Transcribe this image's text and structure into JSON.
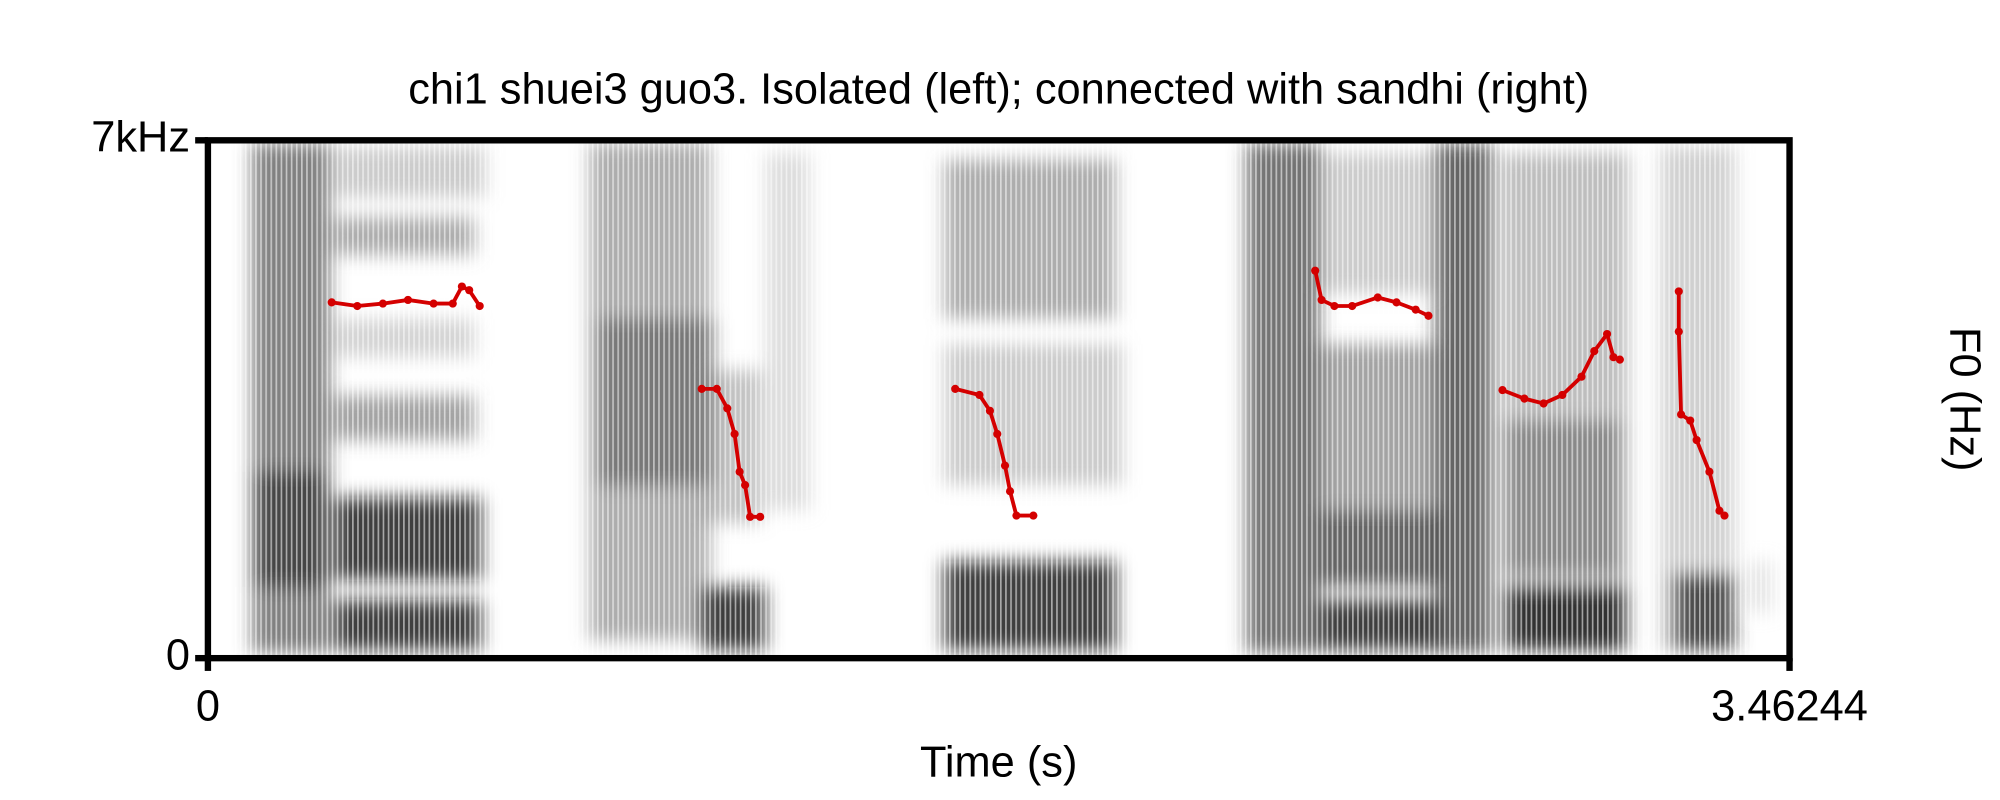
{
  "chart_data": {
    "type": "spectrogram",
    "title": "chi1 shuei3 guo3. Isolated (left); connected with sandhi (right)",
    "x_label": "Time (s)",
    "y2_label": "F0 (Hz)",
    "xlim": [
      0,
      3.46244
    ],
    "xticks": [
      0,
      3.46244
    ],
    "ylim": [
      0,
      7000
    ],
    "yticks": [
      {
        "value": 7000,
        "label": "7kHz"
      },
      0
    ],
    "y2lim": [
      75,
      500
    ],
    "color": "#d40000",
    "contours": [
      {
        "axis": "y2",
        "x": [
          0.271,
          0.327,
          0.383,
          0.438,
          0.494,
          0.536,
          0.556,
          0.572,
          0.595
        ],
        "values": [
          367,
          364,
          366,
          369,
          366,
          366,
          380,
          377,
          364
        ]
      },
      {
        "axis": "y2",
        "x": [
          1.081,
          1.114,
          1.137,
          1.153,
          1.164,
          1.176,
          1.187,
          1.209
        ],
        "values": [
          296,
          296,
          280,
          259,
          228,
          217,
          191,
          191
        ]
      },
      {
        "axis": "y2",
        "x": [
          1.636,
          1.689,
          1.712,
          1.728,
          1.745,
          1.756,
          1.77,
          1.807
        ],
        "values": [
          296,
          291,
          278,
          259,
          233,
          212,
          192,
          192
        ]
      },
      {
        "axis": "y2",
        "x": [
          2.424,
          2.438,
          2.466,
          2.505,
          2.561,
          2.602,
          2.644,
          2.672
        ],
        "values": [
          393,
          369,
          364,
          364,
          371,
          367,
          361,
          356
        ]
      },
      {
        "axis": "y2",
        "x": [
          2.834,
          2.882,
          2.924,
          2.965,
          3.007,
          3.035,
          3.063,
          3.077,
          3.091
        ],
        "values": [
          295,
          288,
          284,
          291,
          306,
          327,
          341,
          322,
          320
        ]
      },
      {
        "axis": "y2",
        "x": [
          3.22,
          3.22,
          3.225,
          3.245,
          3.259,
          3.287,
          3.309,
          3.32
        ],
        "values": [
          376,
          343,
          275,
          270,
          254,
          228,
          196,
          192
        ]
      }
    ]
  }
}
